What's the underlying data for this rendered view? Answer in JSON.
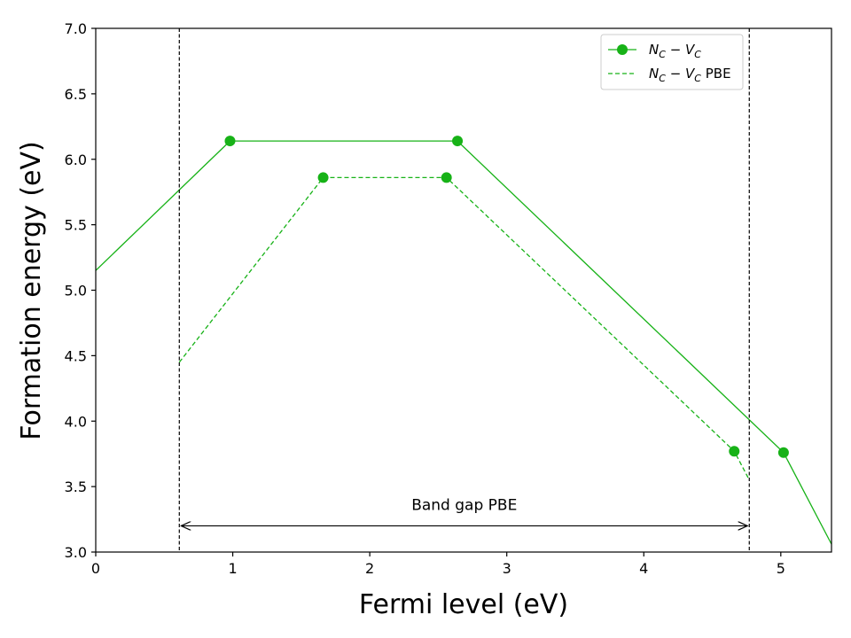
{
  "chart_data": {
    "type": "line",
    "xlabel": "Fermi level (eV)",
    "ylabel": "Formation energy (eV)",
    "xlim": [
      0,
      5.37
    ],
    "ylim": [
      3.0,
      7.0
    ],
    "xticks": [
      "0",
      "1",
      "2",
      "3",
      "4",
      "5"
    ],
    "yticks": [
      "3.0",
      "3.5",
      "4.0",
      "4.5",
      "5.0",
      "5.5",
      "6.0",
      "6.5",
      "7.0"
    ],
    "grid": false,
    "legend_position": "top-right",
    "colors": {
      "series": "#17b217",
      "vlines": "#000000"
    },
    "series": [
      {
        "name_main": "N",
        "name_sub1": "C",
        "name_mid": " − V",
        "name_sub2": "C",
        "name_suffix": "",
        "style": "solid",
        "markers": true,
        "x": [
          0.0,
          0.98,
          2.64,
          5.02,
          5.37
        ],
        "y": [
          5.15,
          6.14,
          6.14,
          3.76,
          3.06
        ],
        "marker_x": [
          0.98,
          2.64,
          5.02
        ],
        "marker_y": [
          6.14,
          6.14,
          3.76
        ]
      },
      {
        "name_main": "N",
        "name_sub1": "C",
        "name_mid": " − V",
        "name_sub2": "C",
        "name_suffix": " PBE",
        "style": "dashed",
        "markers": true,
        "x": [
          0.61,
          1.66,
          2.56,
          4.66,
          4.77
        ],
        "y": [
          4.45,
          5.86,
          5.86,
          3.77,
          3.55
        ],
        "marker_x": [
          1.66,
          2.56,
          4.66
        ],
        "marker_y": [
          5.86,
          5.86,
          3.77
        ]
      }
    ],
    "vlines": [
      0.61,
      4.77
    ],
    "annotation": {
      "text": "Band gap PBE",
      "x_start": 0.61,
      "x_end": 4.77,
      "y": 3.2,
      "text_x": 2.69,
      "text_y": 3.32
    }
  }
}
